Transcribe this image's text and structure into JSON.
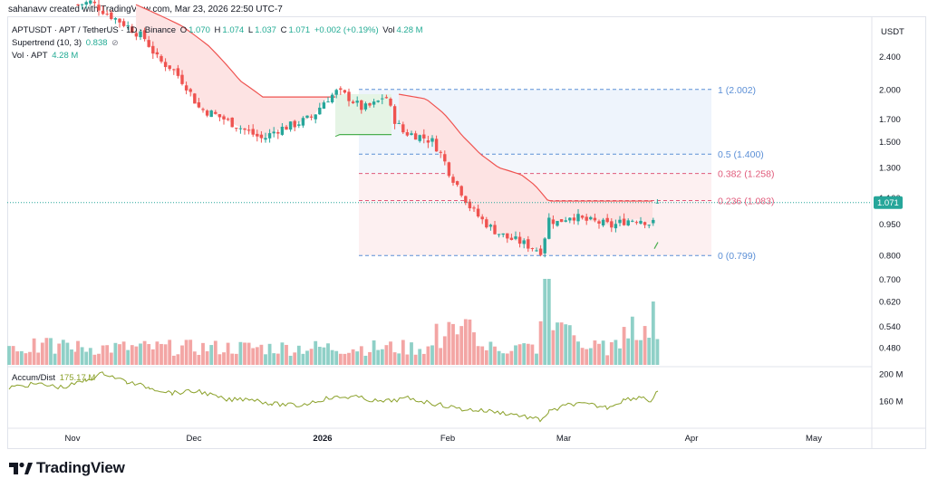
{
  "header": {
    "credit": "sahanavv created with TradingView.com, Mar 23, 2026 22:50 UTC-7"
  },
  "legend": {
    "symbol": "APTUSDT · APT / TetherUS · 1D · Binance",
    "o_label": "O",
    "o_value": "1.070",
    "h_label": "H",
    "h_value": "1.074",
    "l_label": "L",
    "l_value": "1.037",
    "c_label": "C",
    "c_value": "1.071",
    "change": "+0.002 (+0.19%)",
    "vol_label": "Vol",
    "vol_value": "4.28 M",
    "supertrend_label": "Supertrend (10, 3)",
    "supertrend_value": "0.838",
    "supertrend_icon": "eye-off-icon",
    "vol_apt_label": "Vol · APT",
    "vol_apt_value": "4.28 M",
    "accum_label": "Accum/Dist",
    "accum_value": "175.17 M"
  },
  "branding": {
    "name": "TradingView",
    "logo": "tradingview-logo"
  },
  "colors": {
    "up": "#26a69a",
    "down": "#ef5350",
    "fib_blue": "#5b8fd6",
    "fib_red": "#e05a7a",
    "accum": "#8ba12a",
    "st_down_fill": "#fde3e3",
    "st_up_fill": "#e5f4e5"
  },
  "chart_data": {
    "type": "candlestick",
    "price_axis": {
      "currency": "USDT",
      "scale": "log",
      "ticks": [
        "2.400",
        "2.000",
        "1.700",
        "1.500",
        "1.300",
        "1.100",
        "0.950",
        "0.800",
        "0.700",
        "0.620",
        "0.540",
        "0.480"
      ],
      "last_price": "1.071"
    },
    "time_axis": {
      "ticks": [
        "Nov",
        "Dec",
        "2026",
        "Feb",
        "Mar",
        "Apr",
        "May"
      ]
    },
    "volume_axis": {
      "ticks": [
        "200 M",
        "160 M"
      ]
    },
    "fibonacci": [
      {
        "level": "1",
        "price": "2.002",
        "label": "1 (2.002)"
      },
      {
        "level": "0.5",
        "price": "1.400",
        "label": "0.5 (1.400)"
      },
      {
        "level": "0.382",
        "price": "1.258",
        "label": "0.382 (1.258)"
      },
      {
        "level": "0.236",
        "price": "1.083",
        "label": "0.236 (1.083)"
      },
      {
        "level": "0",
        "price": "0.799",
        "label": "0 (0.799)"
      }
    ],
    "ohlc_samples": [
      {
        "date": "Oct",
        "o": 3.0,
        "h": 3.2,
        "l": 2.6,
        "c": 2.8
      },
      {
        "date": "Nov 1",
        "o": 2.9,
        "h": 3.0,
        "l": 2.4,
        "c": 2.5
      },
      {
        "date": "Nov 15",
        "o": 2.5,
        "h": 2.6,
        "l": 2.2,
        "c": 2.3
      },
      {
        "date": "Dec 1",
        "o": 2.1,
        "h": 2.2,
        "l": 1.75,
        "c": 1.8
      },
      {
        "date": "Dec 15",
        "o": 1.65,
        "h": 1.75,
        "l": 1.45,
        "c": 1.55
      },
      {
        "date": "Jan 1",
        "o": 1.6,
        "h": 1.8,
        "l": 1.55,
        "c": 1.7
      },
      {
        "date": "Jan 7",
        "o": 1.85,
        "h": 2.02,
        "l": 1.8,
        "c": 1.95
      },
      {
        "date": "Jan 20",
        "o": 1.7,
        "h": 1.75,
        "l": 1.55,
        "c": 1.6
      },
      {
        "date": "Feb 1",
        "o": 1.5,
        "h": 1.55,
        "l": 1.2,
        "c": 1.3
      },
      {
        "date": "Feb 7",
        "o": 1.2,
        "h": 1.25,
        "l": 0.92,
        "c": 1.0
      },
      {
        "date": "Feb 24",
        "o": 0.85,
        "h": 0.9,
        "l": 0.8,
        "c": 0.82
      },
      {
        "date": "Feb 27",
        "o": 0.85,
        "h": 1.12,
        "l": 0.84,
        "c": 1.02
      },
      {
        "date": "Mar 10",
        "o": 1.0,
        "h": 1.03,
        "l": 0.92,
        "c": 0.95
      },
      {
        "date": "Mar 23",
        "o": 1.07,
        "h": 1.074,
        "l": 1.037,
        "c": 1.071
      }
    ]
  }
}
